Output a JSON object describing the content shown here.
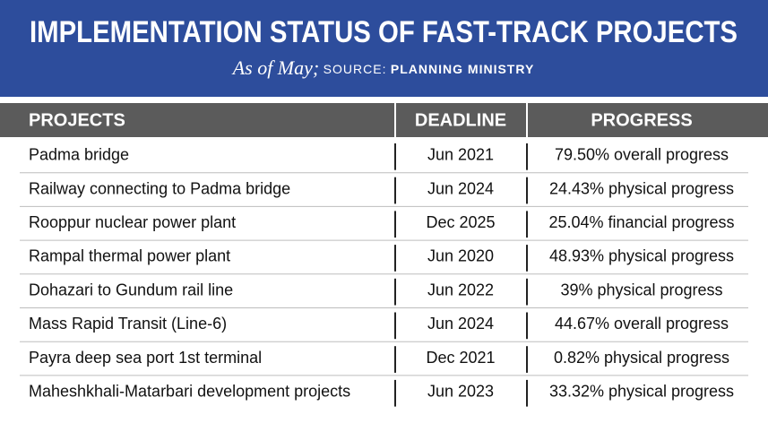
{
  "header": {
    "title": "IMPLEMENTATION STATUS OF FAST-TRACK PROJECTS",
    "subtitle": "As of May;",
    "source_label": "SOURCE:",
    "source": "PLANNING MINISTRY"
  },
  "table": {
    "columns": [
      "PROJECTS",
      "DEADLINE",
      "PROGRESS"
    ],
    "rows": [
      [
        "Padma bridge",
        "Jun 2021",
        "79.50% overall progress"
      ],
      [
        "Railway connecting to Padma bridge",
        "Jun 2024",
        "24.43% physical progress"
      ],
      [
        "Rooppur nuclear power plant",
        "Dec 2025",
        "25.04% financial progress"
      ],
      [
        "Rampal thermal power plant",
        "Jun 2020",
        "48.93% physical progress"
      ],
      [
        "Dohazari to Gundum rail line",
        "Jun 2022",
        "39% physical progress"
      ],
      [
        "Mass Rapid Transit (Line-6)",
        "Jun 2024",
        "44.67% overall progress"
      ],
      [
        "Payra deep sea port 1st terminal",
        "Dec 2021",
        "0.82% physical progress"
      ],
      [
        "Maheshkhali-Matarbari development projects",
        "Jun 2023",
        "33.32% physical progress"
      ]
    ]
  }
}
